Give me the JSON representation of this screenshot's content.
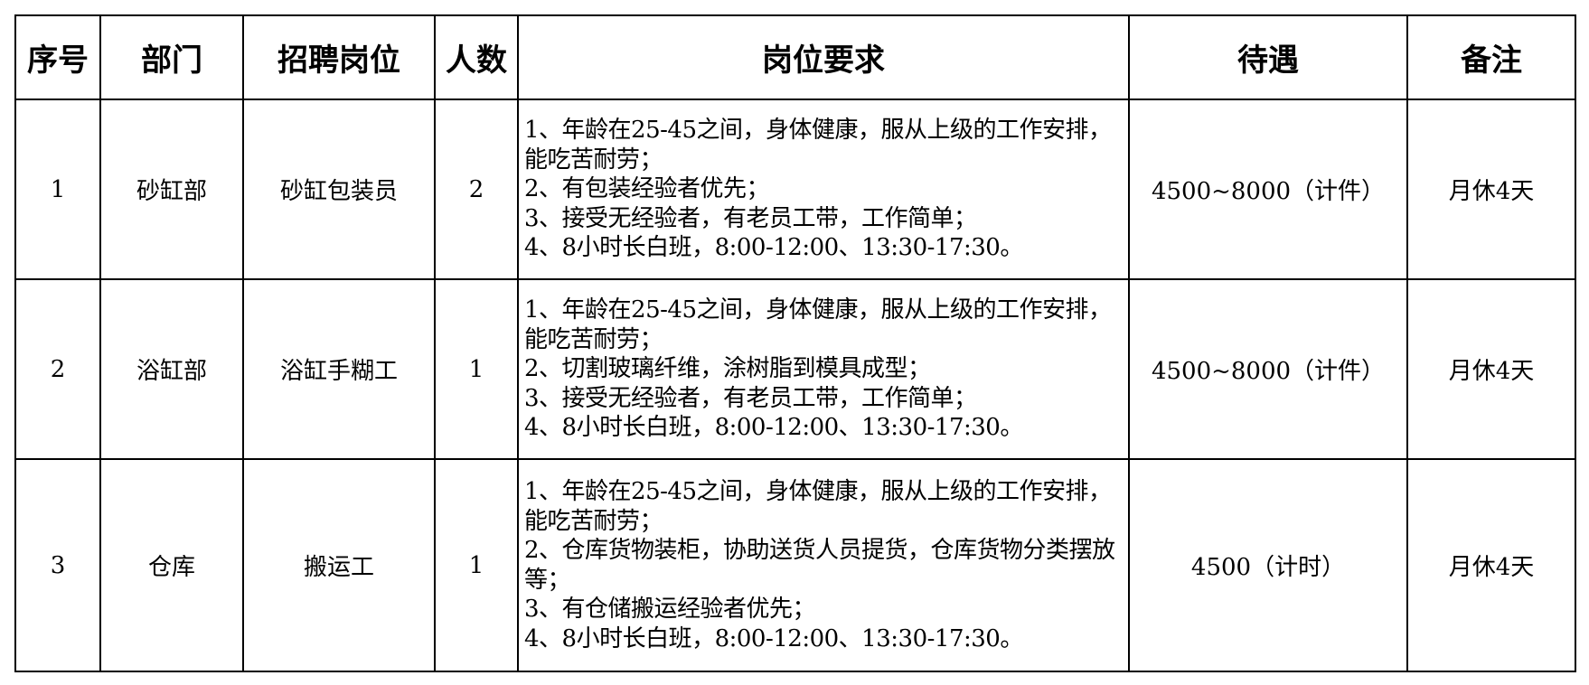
{
  "headers": [
    "序号",
    "部门",
    "招聘岗位",
    "人数",
    "岗位要求",
    "待遇",
    "备注"
  ],
  "rows": [
    {
      "no": "1",
      "dept": "砂缸部",
      "position": "砂缸包装员",
      "count": "2",
      "requirements": [
        "1、年龄在25-45之间，身体健康，服从上级的工作安排，能吃苦耐劳；",
        "2、有包装经验者优先；",
        "3、接受无经验者，有老员工带，工作简单；",
        "4、8小时长白班，8:00-12:00、13:30-17:30。"
      ],
      "pay": "4500~8000（计件）",
      "note": "月休4天"
    },
    {
      "no": "2",
      "dept": "浴缸部",
      "position": "浴缸手糊工",
      "count": "1",
      "requirements": [
        "1、年龄在25-45之间，身体健康，服从上级的工作安排，能吃苦耐劳；",
        "2、切割玻璃纤维，涂树脂到模具成型；",
        "3、接受无经验者，有老员工带，工作简单；",
        "4、8小时长白班，8:00-12:00、13:30-17:30。"
      ],
      "pay": "4500~8000（计件）",
      "note": "月休4天"
    },
    {
      "no": "3",
      "dept": "仓库",
      "position": "搬运工",
      "count": "1",
      "requirements": [
        "1、年龄在25-45之间，身体健康，服从上级的工作安排，能吃苦耐劳；",
        "2、仓库货物装柜，协助送货人员提货，仓库货物分类摆放等；",
        "3、有仓储搬运经验者优先；",
        "4、8小时长白班，8:00-12:00、13:30-17:30。"
      ],
      "pay": "4500（计时）",
      "note": "月休4天"
    }
  ]
}
